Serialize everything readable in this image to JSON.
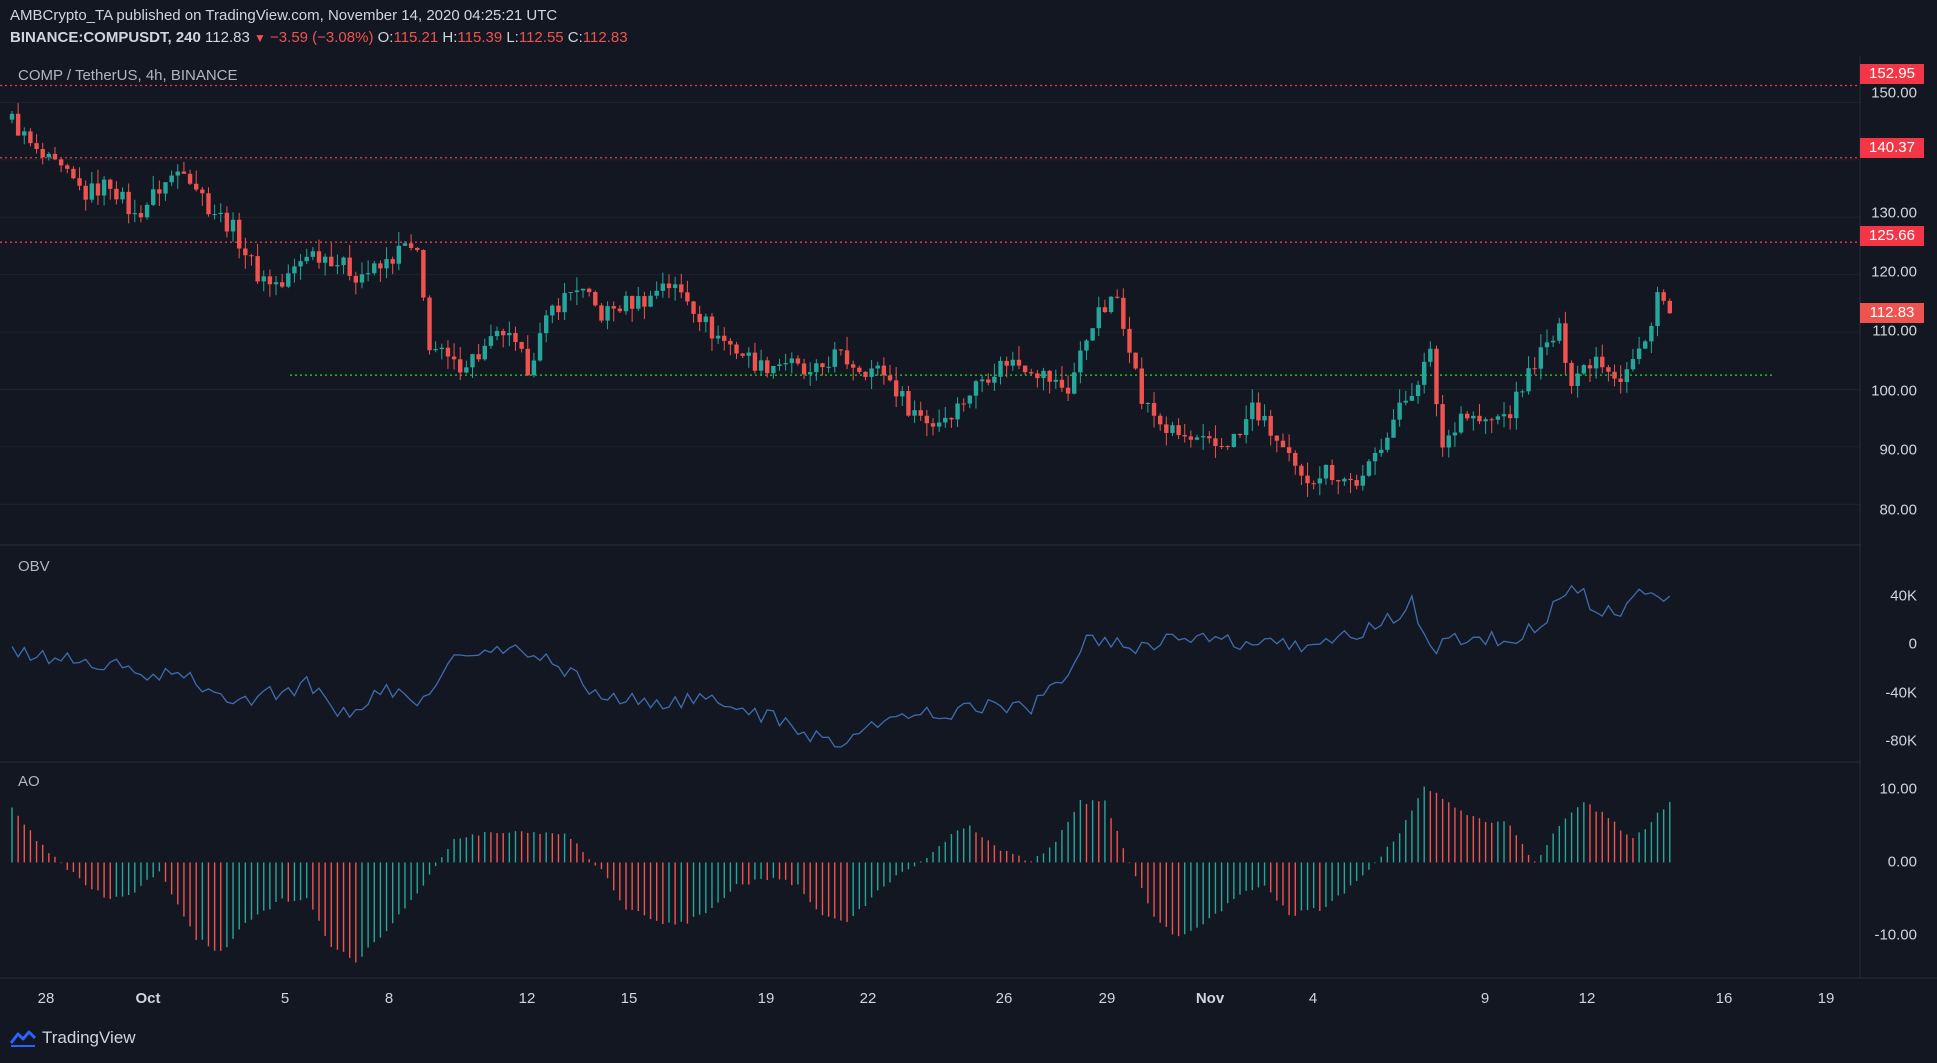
{
  "header": {
    "publisher_line": "AMBCrypto_TA published on TradingView.com, November 14, 2020 04:25:21 UTC",
    "symbol": "BINANCE:COMPUSDT, 240",
    "last": "112.83",
    "change": "−3.59 (−3.08%)",
    "o_label": "O:",
    "o_value": "115.21",
    "h_label": "H:",
    "h_value": "115.39",
    "l_label": "L:",
    "l_value": "112.55",
    "c_label": "C:",
    "c_value": "112.83"
  },
  "price_pane": {
    "label": "COMP / TetherUS, 4h, BINANCE"
  },
  "obv_pane": {
    "label": "OBV"
  },
  "ao_pane": {
    "label": "AO"
  },
  "footer": {
    "brand": "TradingView"
  },
  "colors": {
    "background": "#131722",
    "up": "#26a69a",
    "down": "#ef5350",
    "obv_line": "#3f6cae",
    "ao_up": "#26a69a",
    "ao_down": "#ef5350",
    "resistance": "#f23645",
    "support": "#26d926",
    "grid": "#1e222d"
  },
  "chart_data": [
    {
      "type": "candlestick",
      "title": "COMP / TetherUS, 4h, BINANCE",
      "ylim": [
        75,
        156
      ],
      "y_ticks": [
        "150.00",
        "140.00",
        "130.00",
        "120.00",
        "110.00",
        "100.00",
        "90.00",
        "80.00"
      ],
      "x_ticks": [
        "28",
        "Oct",
        "5",
        "8",
        "12",
        "15",
        "19",
        "22",
        "26",
        "29",
        "Nov",
        "4",
        "9",
        "12",
        "16",
        "19"
      ],
      "horizontal_levels": [
        {
          "value": 152.95,
          "label": "152.95",
          "style": "dotted",
          "color": "red"
        },
        {
          "value": 140.37,
          "label": "140.37",
          "style": "dotted",
          "color": "red"
        },
        {
          "value": 125.66,
          "label": "125.66",
          "style": "dotted",
          "color": "red"
        },
        {
          "value": 102.5,
          "style": "dotted",
          "color": "green"
        }
      ],
      "last_price": {
        "value": 112.83,
        "label": "112.83"
      },
      "close_path": [
        [
          0,
          147
        ],
        [
          4,
          141
        ],
        [
          8,
          138
        ],
        [
          12,
          134
        ],
        [
          16,
          136
        ],
        [
          20,
          130
        ],
        [
          24,
          135
        ],
        [
          28,
          139
        ],
        [
          32,
          132
        ],
        [
          36,
          128
        ],
        [
          40,
          120
        ],
        [
          44,
          118
        ],
        [
          48,
          124
        ],
        [
          52,
          123
        ],
        [
          56,
          120
        ],
        [
          60,
          121
        ],
        [
          64,
          125
        ],
        [
          66,
          123
        ],
        [
          68,
          108
        ],
        [
          72,
          104
        ],
        [
          76,
          106
        ],
        [
          80,
          110
        ],
        [
          84,
          104
        ],
        [
          88,
          114
        ],
        [
          92,
          118
        ],
        [
          96,
          113
        ],
        [
          100,
          115
        ],
        [
          104,
          116
        ],
        [
          106,
          119
        ],
        [
          110,
          116
        ],
        [
          114,
          110
        ],
        [
          118,
          107
        ],
        [
          122,
          104
        ],
        [
          126,
          105
        ],
        [
          130,
          102
        ],
        [
          134,
          106
        ],
        [
          138,
          104
        ],
        [
          142,
          103
        ],
        [
          146,
          97
        ],
        [
          150,
          94
        ],
        [
          154,
          97
        ],
        [
          158,
          102
        ],
        [
          162,
          105
        ],
        [
          166,
          104
        ],
        [
          170,
          101
        ],
        [
          172,
          100
        ],
        [
          176,
          112
        ],
        [
          180,
          116
        ],
        [
          182,
          108
        ],
        [
          184,
          98
        ],
        [
          188,
          93
        ],
        [
          192,
          91
        ],
        [
          196,
          90
        ],
        [
          200,
          92
        ],
        [
          202,
          97
        ],
        [
          206,
          91
        ],
        [
          210,
          84
        ],
        [
          214,
          86
        ],
        [
          218,
          84
        ],
        [
          220,
          84
        ],
        [
          224,
          93
        ],
        [
          228,
          100
        ],
        [
          231,
          106
        ],
        [
          233,
          90
        ],
        [
          236,
          96
        ],
        [
          240,
          94
        ],
        [
          244,
          96
        ],
        [
          248,
          105
        ],
        [
          252,
          110
        ],
        [
          254,
          102
        ],
        [
          258,
          106
        ],
        [
          262,
          102
        ],
        [
          266,
          108
        ],
        [
          268,
          117
        ],
        [
          270,
          112.8
        ]
      ]
    },
    {
      "type": "line",
      "title": "OBV",
      "ylim": [
        -90000,
        70000
      ],
      "y_ticks": [
        "40K",
        "0",
        "-40K",
        "-80K"
      ],
      "path": [
        [
          0,
          -10000
        ],
        [
          8,
          -14000
        ],
        [
          16,
          -20000
        ],
        [
          24,
          -30000
        ],
        [
          28,
          -25000
        ],
        [
          32,
          -45000
        ],
        [
          40,
          -45000
        ],
        [
          48,
          -35000
        ],
        [
          54,
          -60000
        ],
        [
          60,
          -40000
        ],
        [
          66,
          -50000
        ],
        [
          72,
          -15000
        ],
        [
          80,
          -7000
        ],
        [
          88,
          -15000
        ],
        [
          96,
          -45000
        ],
        [
          104,
          -50000
        ],
        [
          112,
          -48000
        ],
        [
          120,
          -55000
        ],
        [
          128,
          -72000
        ],
        [
          134,
          -82000
        ],
        [
          140,
          -70000
        ],
        [
          146,
          -60000
        ],
        [
          152,
          -58000
        ],
        [
          158,
          -52000
        ],
        [
          166,
          -55000
        ],
        [
          170,
          -35000
        ],
        [
          176,
          5000
        ],
        [
          182,
          -5000
        ],
        [
          188,
          2000
        ],
        [
          196,
          0
        ],
        [
          206,
          -5000
        ],
        [
          214,
          0
        ],
        [
          222,
          10000
        ],
        [
          228,
          30000
        ],
        [
          231,
          -5000
        ],
        [
          236,
          3000
        ],
        [
          244,
          0
        ],
        [
          250,
          20000
        ],
        [
          254,
          45000
        ],
        [
          258,
          28000
        ],
        [
          262,
          22000
        ],
        [
          266,
          45000
        ],
        [
          270,
          35000
        ]
      ]
    },
    {
      "type": "bar",
      "title": "AO",
      "ylim": [
        -14,
        12
      ],
      "y_ticks": [
        "10.00",
        "0.00",
        "-10.00"
      ],
      "path": [
        [
          0,
          7
        ],
        [
          4,
          3
        ],
        [
          8,
          0
        ],
        [
          12,
          -3
        ],
        [
          16,
          -5
        ],
        [
          20,
          -4
        ],
        [
          24,
          -1
        ],
        [
          30,
          -10
        ],
        [
          34,
          -12
        ],
        [
          38,
          -8
        ],
        [
          44,
          -5
        ],
        [
          48,
          -5
        ],
        [
          52,
          -11
        ],
        [
          56,
          -13
        ],
        [
          60,
          -10
        ],
        [
          66,
          -4
        ],
        [
          72,
          3
        ],
        [
          78,
          4
        ],
        [
          84,
          4
        ],
        [
          90,
          4
        ],
        [
          96,
          -1
        ],
        [
          100,
          -6
        ],
        [
          106,
          -8
        ],
        [
          110,
          -8
        ],
        [
          114,
          -6
        ],
        [
          118,
          -3
        ],
        [
          124,
          -2
        ],
        [
          128,
          -3
        ],
        [
          132,
          -7
        ],
        [
          136,
          -8
        ],
        [
          142,
          -3
        ],
        [
          148,
          0
        ],
        [
          152,
          3
        ],
        [
          156,
          5
        ],
        [
          160,
          2
        ],
        [
          166,
          0
        ],
        [
          170,
          3
        ],
        [
          174,
          8
        ],
        [
          178,
          8
        ],
        [
          182,
          0
        ],
        [
          186,
          -7
        ],
        [
          190,
          -10
        ],
        [
          196,
          -7
        ],
        [
          200,
          -4
        ],
        [
          204,
          -3
        ],
        [
          208,
          -7
        ],
        [
          214,
          -6
        ],
        [
          220,
          -2
        ],
        [
          226,
          4
        ],
        [
          230,
          10
        ],
        [
          234,
          8
        ],
        [
          238,
          6
        ],
        [
          244,
          5
        ],
        [
          248,
          0
        ],
        [
          252,
          5
        ],
        [
          256,
          8
        ],
        [
          260,
          6
        ],
        [
          264,
          3
        ],
        [
          270,
          8
        ]
      ]
    }
  ]
}
